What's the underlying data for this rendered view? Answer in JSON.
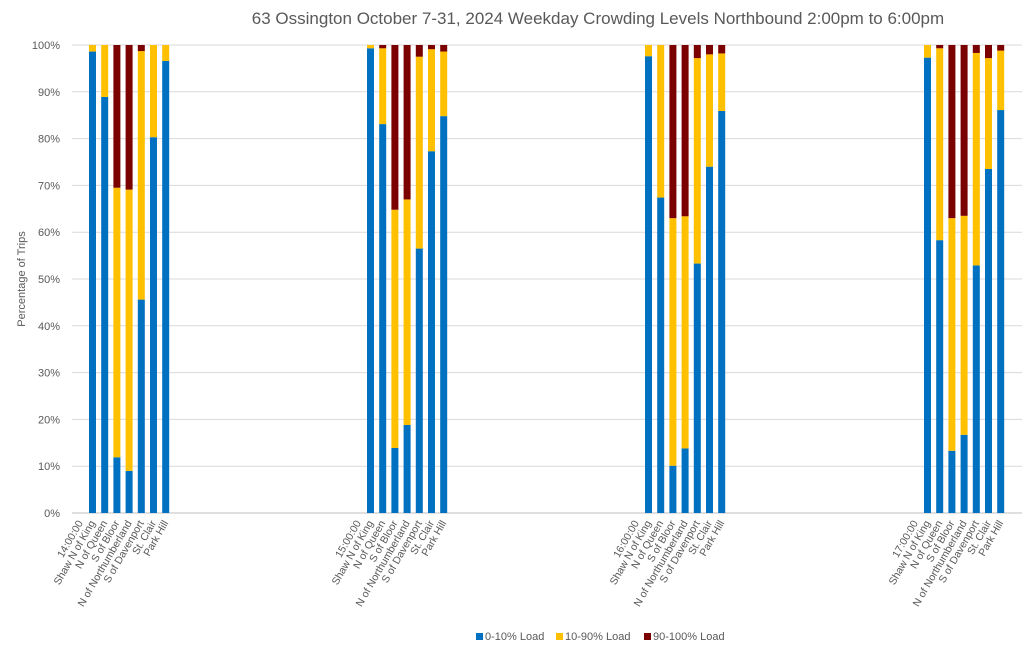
{
  "chart_data": {
    "type": "bar",
    "stacked": true,
    "title": "63 Ossington October 7-31, 2024  Weekday Crowding Levels Northbound 2:00pm to 6:00pm",
    "ylabel": "Percentage of Trips",
    "ylim": [
      0,
      100
    ],
    "yticks": [
      "0%",
      "10%",
      "20%",
      "30%",
      "40%",
      "50%",
      "60%",
      "70%",
      "80%",
      "90%",
      "100%"
    ],
    "grid": true,
    "legend_position": "bottom",
    "colors": {
      "load_low": "#0070C0",
      "load_mid": "#FFC000",
      "load_high": "#7B0000"
    },
    "groups": [
      {
        "label": "14:00:00",
        "categories": [
          "Shaw N of King",
          "N of Queen",
          "S of Bloor",
          "N of Northumberland",
          "S of Davenport",
          "St. Clair",
          "Park Hill"
        ],
        "series": [
          {
            "name": "0-10% Load",
            "values": [
              98.6,
              88.9,
              11.9,
              9.0,
              45.6,
              80.3,
              96.6
            ]
          },
          {
            "name": "10-90% Load",
            "values": [
              1.4,
              11.1,
              57.6,
              60.1,
              53.1,
              19.7,
              3.4
            ]
          },
          {
            "name": "90-100% Load",
            "values": [
              0,
              0,
              30.5,
              30.9,
              1.3,
              0,
              0
            ]
          }
        ]
      },
      {
        "label": "15:00:00",
        "categories": [
          "Shaw N of King",
          "N of Queen",
          "S of Bloor",
          "N of Northumberland",
          "S of Davenport",
          "St. Clair",
          "Park Hill"
        ],
        "series": [
          {
            "name": "0-10% Load",
            "values": [
              99.3,
              83.1,
              13.9,
              18.8,
              56.5,
              77.3,
              84.8
            ]
          },
          {
            "name": "10-90% Load",
            "values": [
              0.7,
              16.2,
              50.9,
              48.2,
              41.0,
              21.8,
              13.8
            ]
          },
          {
            "name": "90-100% Load",
            "values": [
              0,
              0.7,
              35.2,
              33.0,
              2.5,
              0.9,
              1.4
            ]
          }
        ]
      },
      {
        "label": "16:00:00",
        "categories": [
          "Shaw N of King",
          "N of Queen",
          "S of Bloor",
          "N of Northumberland",
          "S of Davenport",
          "St. Clair",
          "Park Hill"
        ],
        "series": [
          {
            "name": "0-10% Load",
            "values": [
              97.6,
              67.4,
              10.1,
              13.8,
              53.3,
              74.0,
              85.9
            ]
          },
          {
            "name": "10-90% Load",
            "values": [
              2.4,
              32.6,
              52.9,
              49.6,
              43.9,
              24.0,
              12.3
            ]
          },
          {
            "name": "90-100% Load",
            "values": [
              0,
              0,
              37.0,
              36.6,
              2.8,
              2.0,
              1.8
            ]
          }
        ]
      },
      {
        "label": "17:00:00",
        "categories": [
          "Shaw N of King",
          "N of Queen",
          "S of Bloor",
          "N of Northumberland",
          "S of Davenport",
          "St. Clair",
          "Park Hill"
        ],
        "series": [
          {
            "name": "0-10% Load",
            "values": [
              97.3,
              58.3,
              13.3,
              16.7,
              52.9,
              73.5,
              86.1
            ]
          },
          {
            "name": "10-90% Load",
            "values": [
              2.7,
              41.0,
              49.7,
              46.8,
              45.4,
              23.7,
              12.7
            ]
          },
          {
            "name": "90-100% Load",
            "values": [
              0,
              0.7,
              37.0,
              36.5,
              1.7,
              2.8,
              1.2
            ]
          }
        ]
      }
    ]
  }
}
